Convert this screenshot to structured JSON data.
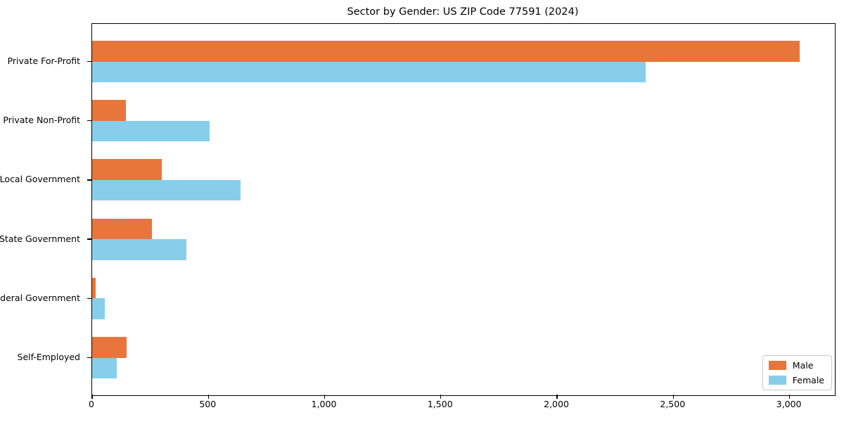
{
  "title": "Sector by Gender: US ZIP Code 77591 (2024)",
  "chart_data": {
    "type": "bar",
    "orientation": "horizontal",
    "title": "Sector by Gender: US ZIP Code 77591 (2024)",
    "xlabel": "",
    "ylabel": "",
    "categories": [
      "Private For-Profit",
      "Private Non-Profit",
      "Local Government",
      "State Government",
      "Federal Government",
      "Self-Employed"
    ],
    "series": [
      {
        "name": "Male",
        "color": "#E8763C",
        "values": [
          3043,
          145,
          300,
          256,
          14,
          147
        ]
      },
      {
        "name": "Female",
        "color": "#87CEEB",
        "values": [
          2382,
          505,
          639,
          404,
          54,
          106
        ]
      }
    ],
    "xlim": [
      0,
      3195
    ],
    "xticks": [
      0,
      500,
      1000,
      1500,
      2000,
      2500,
      3000
    ],
    "xtick_labels": [
      "0",
      "500",
      "1,000",
      "1,500",
      "2,000",
      "2,500",
      "3,000"
    ],
    "grid": false,
    "background": "#ffffff",
    "legend_position": "lower right"
  }
}
